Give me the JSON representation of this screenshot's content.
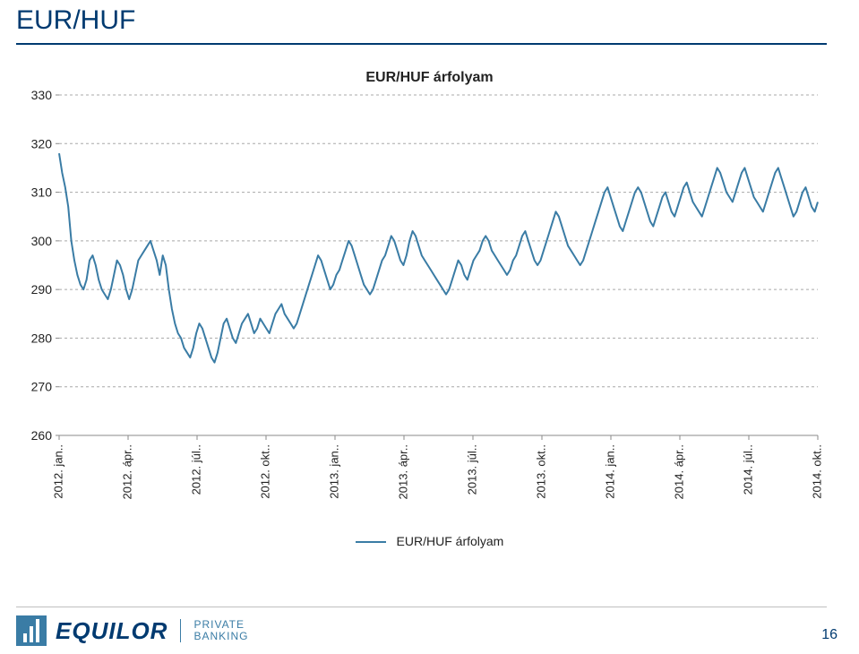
{
  "page_title": "EUR/HUF",
  "chart": {
    "type": "line",
    "title": "EUR/HUF árfolyam",
    "ylabel_fontsize": 14,
    "ylim": [
      260,
      330
    ],
    "ytick_step": 10,
    "yticks": [
      260,
      270,
      280,
      290,
      300,
      310,
      320,
      330
    ],
    "xticks": [
      "2012. jan..",
      "2012. ápr..",
      "2012. júl..",
      "2012. okt..",
      "2013. jan..",
      "2013. ápr..",
      "2013. júl..",
      "2013. okt..",
      "2014. jan..",
      "2014. ápr..",
      "2014. júl..",
      "2014. okt.."
    ],
    "grid_color": "#a8a8a8",
    "axis_color": "#8a8a8a",
    "background_color": "#ffffff",
    "line_color": "#3a7ca5",
    "line_width": 2,
    "series": [
      318,
      314,
      311,
      307,
      300,
      296,
      293,
      291,
      290,
      292,
      296,
      297,
      295,
      292,
      290,
      289,
      288,
      290,
      293,
      296,
      295,
      293,
      290,
      288,
      290,
      293,
      296,
      297,
      298,
      299,
      300,
      298,
      296,
      293,
      297,
      295,
      290,
      286,
      283,
      281,
      280,
      278,
      277,
      276,
      278,
      281,
      283,
      282,
      280,
      278,
      276,
      275,
      277,
      280,
      283,
      284,
      282,
      280,
      279,
      281,
      283,
      284,
      285,
      283,
      281,
      282,
      284,
      283,
      282,
      281,
      283,
      285,
      286,
      287,
      285,
      284,
      283,
      282,
      283,
      285,
      287,
      289,
      291,
      293,
      295,
      297,
      296,
      294,
      292,
      290,
      291,
      293,
      294,
      296,
      298,
      300,
      299,
      297,
      295,
      293,
      291,
      290,
      289,
      290,
      292,
      294,
      296,
      297,
      299,
      301,
      300,
      298,
      296,
      295,
      297,
      300,
      302,
      301,
      299,
      297,
      296,
      295,
      294,
      293,
      292,
      291,
      290,
      289,
      290,
      292,
      294,
      296,
      295,
      293,
      292,
      294,
      296,
      297,
      298,
      300,
      301,
      300,
      298,
      297,
      296,
      295,
      294,
      293,
      294,
      296,
      297,
      299,
      301,
      302,
      300,
      298,
      296,
      295,
      296,
      298,
      300,
      302,
      304,
      306,
      305,
      303,
      301,
      299,
      298,
      297,
      296,
      295,
      296,
      298,
      300,
      302,
      304,
      306,
      308,
      310,
      311,
      309,
      307,
      305,
      303,
      302,
      304,
      306,
      308,
      310,
      311,
      310,
      308,
      306,
      304,
      303,
      305,
      307,
      309,
      310,
      308,
      306,
      305,
      307,
      309,
      311,
      312,
      310,
      308,
      307,
      306,
      305,
      307,
      309,
      311,
      313,
      315,
      314,
      312,
      310,
      309,
      308,
      310,
      312,
      314,
      315,
      313,
      311,
      309,
      308,
      307,
      306,
      308,
      310,
      312,
      314,
      315,
      313,
      311,
      309,
      307,
      305,
      306,
      308,
      310,
      311,
      309,
      307,
      306,
      308
    ]
  },
  "legend_label": "EUR/HUF árfolyam",
  "footer": {
    "brand": "EQUILOR",
    "sub1": "PRIVATE",
    "sub2": "BANKING",
    "page_number": "16"
  }
}
